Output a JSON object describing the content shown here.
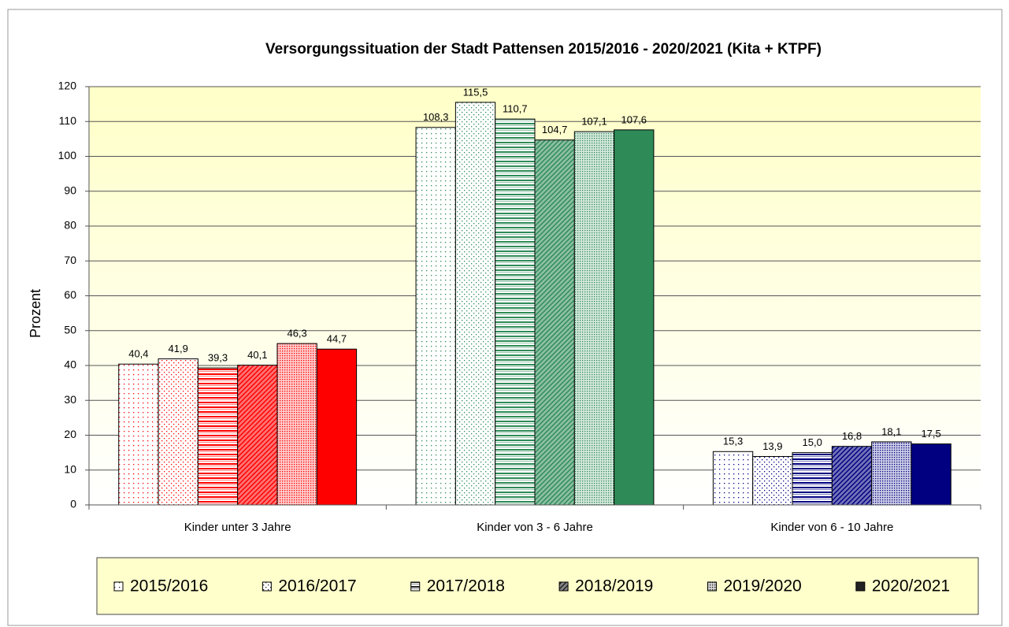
{
  "chart_data": {
    "type": "bar",
    "title": "Versorgungssituation der Stadt Pattensen 2015/2016 - 2020/2021 (Kita + KTPF)",
    "y_label": "Prozent",
    "categories": [
      "Kinder unter 3 Jahre",
      "Kinder von 3 - 6 Jahre",
      "Kinder von 6 - 10 Jahre"
    ],
    "category_colors": [
      "#ff0000",
      "#2e8b57",
      "#000080"
    ],
    "series": [
      {
        "name": "2015/2016",
        "pattern": "dots-sparse",
        "values": [
          40.4,
          108.3,
          15.3
        ],
        "value_labels": [
          "40,4",
          "108,3",
          "15,3"
        ]
      },
      {
        "name": "2016/2017",
        "pattern": "dots",
        "values": [
          41.9,
          115.5,
          13.9
        ],
        "value_labels": [
          "41,9",
          "115,5",
          "13,9"
        ]
      },
      {
        "name": "2017/2018",
        "pattern": "horizontal",
        "values": [
          39.3,
          110.7,
          15.0
        ],
        "value_labels": [
          "39,3",
          "110,7",
          "15,0"
        ]
      },
      {
        "name": "2018/2019",
        "pattern": "diagonal",
        "values": [
          40.1,
          104.7,
          16.8
        ],
        "value_labels": [
          "40,1",
          "104,7",
          "16,8"
        ]
      },
      {
        "name": "2019/2020",
        "pattern": "dots-dense",
        "values": [
          46.3,
          107.1,
          18.1
        ],
        "value_labels": [
          "46,3",
          "107,1",
          "18,1"
        ]
      },
      {
        "name": "2020/2021",
        "pattern": "solid",
        "values": [
          44.7,
          107.6,
          17.5
        ],
        "value_labels": [
          "44,7",
          "107,6",
          "17,5"
        ]
      }
    ],
    "ylim": [
      0,
      120
    ],
    "yticks": [
      0,
      10,
      20,
      30,
      40,
      50,
      60,
      70,
      80,
      90,
      100,
      110,
      120
    ],
    "grid": true,
    "legend": "bottom"
  }
}
